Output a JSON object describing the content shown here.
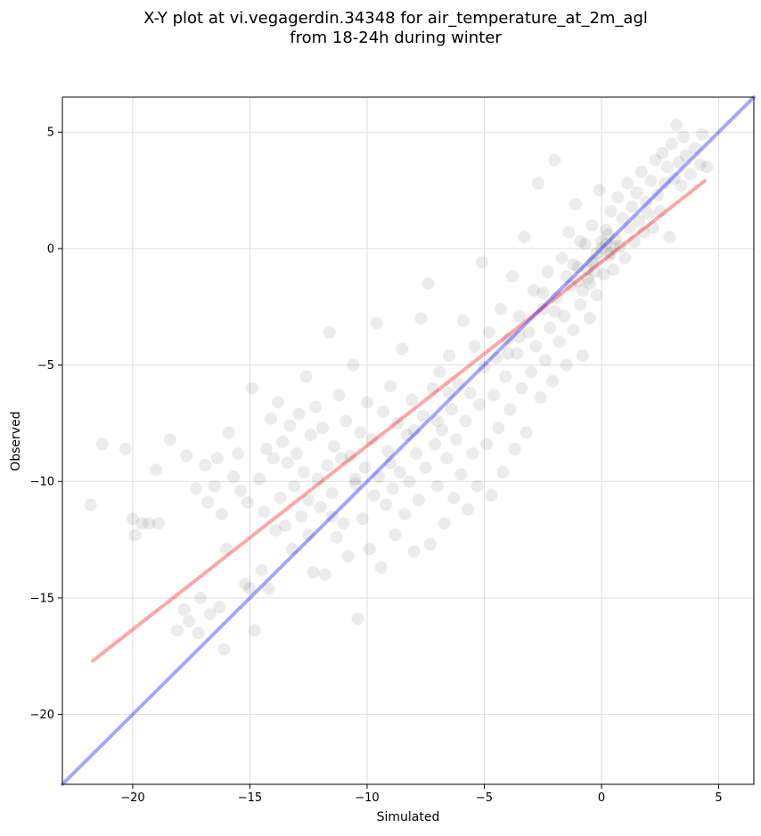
{
  "chart_data": {
    "type": "scatter",
    "title_lines": [
      "X-Y plot at vi.vegagerdin.34348 for air_temperature_at_2m_agl",
      "from 18-24h during winter"
    ],
    "xlabel": "Simulated",
    "ylabel": "Observed",
    "xlim": [
      -23,
      6.5
    ],
    "ylim": [
      -23,
      6.5
    ],
    "x_ticks": [
      {
        "value": -20,
        "label": "−20"
      },
      {
        "value": -15,
        "label": "−15"
      },
      {
        "value": -10,
        "label": "−10"
      },
      {
        "value": -5,
        "label": "−5"
      },
      {
        "value": 0,
        "label": "0"
      },
      {
        "value": 5,
        "label": "5"
      }
    ],
    "y_ticks": [
      {
        "value": -20,
        "label": "−20"
      },
      {
        "value": -15,
        "label": "−15"
      },
      {
        "value": -10,
        "label": "−10"
      },
      {
        "value": -5,
        "label": "−5"
      },
      {
        "value": 0,
        "label": "0"
      },
      {
        "value": 5,
        "label": "5"
      }
    ],
    "grid": true,
    "point_color": "#000000",
    "point_opacity": 0.08,
    "series": [
      {
        "kind": "points",
        "points": [
          [
            -21.8,
            -11.0
          ],
          [
            -21.3,
            -8.4
          ],
          [
            -20.3,
            -8.6
          ],
          [
            -20.0,
            -11.6
          ],
          [
            -19.9,
            -12.3
          ],
          [
            -19.6,
            -11.8
          ],
          [
            -19.3,
            -11.8
          ],
          [
            -19.0,
            -9.5
          ],
          [
            -18.9,
            -11.8
          ],
          [
            -18.4,
            -8.2
          ],
          [
            -18.1,
            -16.4
          ],
          [
            -17.8,
            -15.5
          ],
          [
            -17.7,
            -8.9
          ],
          [
            -17.6,
            -16.0
          ],
          [
            -17.3,
            -10.3
          ],
          [
            -17.2,
            -16.5
          ],
          [
            -17.1,
            -15.0
          ],
          [
            -16.9,
            -9.3
          ],
          [
            -16.8,
            -10.9
          ],
          [
            -16.7,
            -15.7
          ],
          [
            -16.5,
            -10.2
          ],
          [
            -16.4,
            -9.0
          ],
          [
            -16.3,
            -15.4
          ],
          [
            -16.2,
            -11.4
          ],
          [
            -16.1,
            -17.2
          ],
          [
            -16.0,
            -12.9
          ],
          [
            -15.9,
            -7.9
          ],
          [
            -15.7,
            -9.8
          ],
          [
            -15.5,
            -8.8
          ],
          [
            -15.4,
            -10.4
          ],
          [
            -15.2,
            -14.4
          ],
          [
            -15.1,
            -10.9
          ],
          [
            -15.0,
            -14.6
          ],
          [
            -14.9,
            -6.0
          ],
          [
            -14.8,
            -16.4
          ],
          [
            -14.6,
            -9.9
          ],
          [
            -14.5,
            -13.8
          ],
          [
            -14.4,
            -11.3
          ],
          [
            -14.3,
            -8.6
          ],
          [
            -14.2,
            -14.6
          ],
          [
            -14.1,
            -7.3
          ],
          [
            -14.0,
            -9.0
          ],
          [
            -13.9,
            -12.1
          ],
          [
            -13.8,
            -6.6
          ],
          [
            -13.7,
            -10.7
          ],
          [
            -13.6,
            -8.3
          ],
          [
            -13.5,
            -11.9
          ],
          [
            -13.4,
            -9.2
          ],
          [
            -13.3,
            -7.6
          ],
          [
            -13.2,
            -12.9
          ],
          [
            -13.1,
            -10.2
          ],
          [
            -13.0,
            -8.8
          ],
          [
            -12.9,
            -7.1
          ],
          [
            -12.8,
            -11.5
          ],
          [
            -12.7,
            -9.6
          ],
          [
            -12.6,
            -5.5
          ],
          [
            -12.5,
            -10.8
          ],
          [
            -12.4,
            -8.0
          ],
          [
            -12.3,
            -13.9
          ],
          [
            -12.2,
            -6.8
          ],
          [
            -12.1,
            -9.9
          ],
          [
            -12.0,
            -11.1
          ],
          [
            -11.9,
            -7.7
          ],
          [
            -11.8,
            -14.0
          ],
          [
            -11.7,
            -9.3
          ],
          [
            -11.6,
            -3.6
          ],
          [
            -11.5,
            -10.5
          ],
          [
            -11.4,
            -8.5
          ],
          [
            -11.3,
            -12.4
          ],
          [
            -11.2,
            -6.3
          ],
          [
            -11.1,
            -9.0
          ],
          [
            -11.0,
            -11.8
          ],
          [
            -10.9,
            -7.4
          ],
          [
            -10.8,
            -13.2
          ],
          [
            -10.7,
            -8.9
          ],
          [
            -10.6,
            -5.0
          ],
          [
            -10.5,
            -10.1
          ],
          [
            -10.4,
            -15.9
          ],
          [
            -10.3,
            -7.9
          ],
          [
            -10.2,
            -11.6
          ],
          [
            -10.1,
            -9.4
          ],
          [
            -10.0,
            -6.6
          ],
          [
            -9.9,
            -12.9
          ],
          [
            -9.8,
            -8.2
          ],
          [
            -9.7,
            -10.6
          ],
          [
            -9.6,
            -3.2
          ],
          [
            -9.5,
            -9.8
          ],
          [
            -9.4,
            -13.7
          ],
          [
            -9.3,
            -7.0
          ],
          [
            -9.2,
            -11.0
          ],
          [
            -9.1,
            -8.7
          ],
          [
            -9.0,
            -5.9
          ],
          [
            -8.9,
            -10.3
          ],
          [
            -8.8,
            -12.3
          ],
          [
            -8.7,
            -7.5
          ],
          [
            -8.6,
            -9.6
          ],
          [
            -8.5,
            -4.3
          ],
          [
            -8.4,
            -11.4
          ],
          [
            -8.3,
            -8.0
          ],
          [
            -8.2,
            -10.0
          ],
          [
            -8.1,
            -6.5
          ],
          [
            -8.0,
            -13.0
          ],
          [
            -7.9,
            -8.8
          ],
          [
            -7.8,
            -10.8
          ],
          [
            -7.7,
            -3.0
          ],
          [
            -7.6,
            -7.2
          ],
          [
            -7.5,
            -9.4
          ],
          [
            -7.4,
            -1.5
          ],
          [
            -7.3,
            -12.7
          ],
          [
            -7.2,
            -6.0
          ],
          [
            -7.1,
            -8.4
          ],
          [
            -7.0,
            -10.2
          ],
          [
            -6.9,
            -5.3
          ],
          [
            -6.8,
            -7.8
          ],
          [
            -6.7,
            -11.8
          ],
          [
            -6.6,
            -9.0
          ],
          [
            -6.5,
            -4.6
          ],
          [
            -6.4,
            -6.9
          ],
          [
            -6.3,
            -10.7
          ],
          [
            -6.2,
            -8.2
          ],
          [
            -6.1,
            -5.8
          ],
          [
            -6.0,
            -9.7
          ],
          [
            -5.9,
            -3.1
          ],
          [
            -5.8,
            -7.4
          ],
          [
            -5.7,
            -11.2
          ],
          [
            -5.6,
            -6.2
          ],
          [
            -5.5,
            -8.8
          ],
          [
            -5.4,
            -4.2
          ],
          [
            -5.3,
            -10.2
          ],
          [
            -5.2,
            -6.7
          ],
          [
            -5.1,
            -0.6
          ],
          [
            -5.0,
            -5.1
          ],
          [
            -4.9,
            -8.4
          ],
          [
            -4.8,
            -3.6
          ],
          [
            -4.7,
            -10.6
          ],
          [
            -4.6,
            -6.3
          ],
          [
            -4.5,
            -4.7
          ],
          [
            -4.4,
            -7.7
          ],
          [
            -4.3,
            -2.6
          ],
          [
            -4.2,
            -9.6
          ],
          [
            -4.1,
            -5.5
          ],
          [
            -4.0,
            -3.9
          ],
          [
            -3.9,
            -6.9
          ],
          [
            -3.8,
            -1.2
          ],
          [
            -3.7,
            -8.6
          ],
          [
            -3.6,
            -4.5
          ],
          [
            -3.5,
            -2.9
          ],
          [
            -3.4,
            -6.0
          ],
          [
            -3.3,
            0.5
          ],
          [
            -3.2,
            -7.9
          ],
          [
            -3.1,
            -3.6
          ],
          [
            -3.0,
            -5.3
          ],
          [
            -2.9,
            -1.8
          ],
          [
            -2.8,
            -4.2
          ],
          [
            -2.7,
            2.8
          ],
          [
            -2.6,
            -6.4
          ],
          [
            -2.5,
            -2.6
          ],
          [
            -2.4,
            -4.8
          ],
          [
            -2.3,
            -1.0
          ],
          [
            -2.2,
            -3.4
          ],
          [
            -2.1,
            -5.7
          ],
          [
            -2.0,
            3.8
          ],
          [
            -1.9,
            -2.1
          ],
          [
            -1.8,
            -4.0
          ],
          [
            -1.7,
            -0.4
          ],
          [
            -1.6,
            -2.9
          ],
          [
            -1.5,
            -5.0
          ],
          [
            -1.4,
            0.7
          ],
          [
            -1.3,
            -1.6
          ],
          [
            -1.2,
            -3.5
          ],
          [
            -1.1,
            1.9
          ],
          [
            -1.0,
            -0.8
          ],
          [
            -0.9,
            -2.4
          ],
          [
            -0.8,
            -4.6
          ],
          [
            -0.7,
            0.2
          ],
          [
            -0.6,
            -1.3
          ],
          [
            -0.5,
            -3.0
          ],
          [
            -0.4,
            1.0
          ],
          [
            -0.3,
            -0.5
          ],
          [
            -0.2,
            -2.0
          ],
          [
            -0.1,
            2.5
          ],
          [
            0.0,
            0.0
          ],
          [
            0.1,
            -1.1
          ],
          [
            0.2,
            0.8
          ],
          [
            0.3,
            -0.3
          ],
          [
            0.4,
            1.6
          ],
          [
            0.5,
            -0.9
          ],
          [
            0.6,
            0.4
          ],
          [
            0.7,
            2.2
          ],
          [
            0.8,
            0.1
          ],
          [
            0.9,
            1.3
          ],
          [
            1.0,
            -0.4
          ],
          [
            1.1,
            2.8
          ],
          [
            1.2,
            0.9
          ],
          [
            1.3,
            1.8
          ],
          [
            1.4,
            0.3
          ],
          [
            1.5,
            2.4
          ],
          [
            1.6,
            1.2
          ],
          [
            1.7,
            3.3
          ],
          [
            1.8,
            0.7
          ],
          [
            1.9,
            2.0
          ],
          [
            2.0,
            1.5
          ],
          [
            2.1,
            2.9
          ],
          [
            2.2,
            0.9
          ],
          [
            2.3,
            3.8
          ],
          [
            2.4,
            2.3
          ],
          [
            2.5,
            1.6
          ],
          [
            2.6,
            4.1
          ],
          [
            2.7,
            2.8
          ],
          [
            2.8,
            3.5
          ],
          [
            2.9,
            0.5
          ],
          [
            3.0,
            4.5
          ],
          [
            3.1,
            3.0
          ],
          [
            3.2,
            5.3
          ],
          [
            3.3,
            3.7
          ],
          [
            3.4,
            2.7
          ],
          [
            3.5,
            4.8
          ],
          [
            3.6,
            4.0
          ],
          [
            3.8,
            3.2
          ],
          [
            4.0,
            4.3
          ],
          [
            4.2,
            3.6
          ],
          [
            4.3,
            4.9
          ],
          [
            4.5,
            3.5
          ],
          [
            -1.5,
            -1.2
          ],
          [
            -1.0,
            -1.4
          ],
          [
            -0.8,
            -1.8
          ],
          [
            -0.6,
            -0.9
          ],
          [
            -0.4,
            -0.6
          ],
          [
            -0.2,
            -0.2
          ],
          [
            0.0,
            0.3
          ],
          [
            0.2,
            0.2
          ],
          [
            0.3,
            0.6
          ],
          [
            0.5,
            0.1
          ],
          [
            -0.5,
            -1.5
          ],
          [
            -0.3,
            -1.0
          ],
          [
            -1.2,
            -0.7
          ],
          [
            -0.9,
            0.3
          ],
          [
            0.4,
            -0.2
          ],
          [
            -2.5,
            -1.9
          ],
          [
            -2.0,
            -2.7
          ],
          [
            -3.5,
            -3.8
          ],
          [
            -4.0,
            -4.5
          ],
          [
            -6.5,
            -6.2
          ],
          [
            -7.0,
            -7.4
          ],
          [
            -8.0,
            -7.8
          ],
          [
            -9.0,
            -9.2
          ],
          [
            -10.5,
            -9.9
          ],
          [
            -11.5,
            -11.5
          ],
          [
            -12.5,
            -12.3
          ]
        ]
      },
      {
        "kind": "line",
        "color": "#ff0000",
        "opacity": 0.35,
        "points": [
          [
            -21.7,
            -17.7
          ],
          [
            4.4,
            2.9
          ]
        ]
      },
      {
        "kind": "line",
        "color": "#0000ff",
        "opacity": 0.35,
        "points": [
          [
            -23,
            -23
          ],
          [
            6.5,
            6.5
          ]
        ]
      }
    ]
  }
}
